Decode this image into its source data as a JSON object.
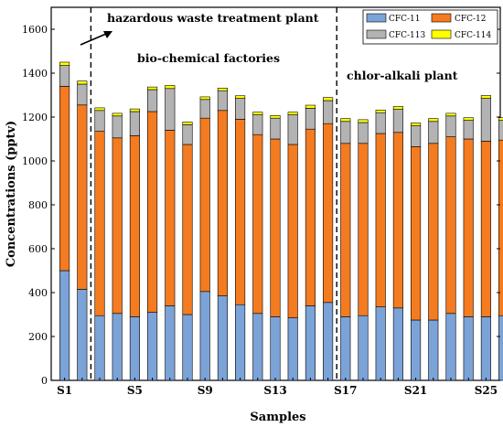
{
  "chart_data": {
    "type": "bar",
    "stacked": true,
    "xlabel": "Samples",
    "ylabel": "Concentrations  (pptv)",
    "ylim": [
      0,
      1700
    ],
    "yticks": [
      0,
      200,
      400,
      600,
      800,
      1000,
      1200,
      1400,
      1600
    ],
    "categories": [
      "S1",
      "S2",
      "S3",
      "S4",
      "S5",
      "S6",
      "S7",
      "S8",
      "S9",
      "S10",
      "S11",
      "S12",
      "S13",
      "S14",
      "S15",
      "S16",
      "S17",
      "S18",
      "S19",
      "S20",
      "S21",
      "S22",
      "S23",
      "S24",
      "S25",
      "S26"
    ],
    "xtick_labels": [
      "S1",
      "S5",
      "S9",
      "S13",
      "S17",
      "S21",
      "S25"
    ],
    "xtick_categories": [
      "S1",
      "S5",
      "S9",
      "S13",
      "S17",
      "S21",
      "S25"
    ],
    "series": [
      {
        "name": "CFC-11",
        "color": "#7ba3d8",
        "values": [
          500,
          415,
          295,
          305,
          290,
          310,
          340,
          300,
          405,
          385,
          345,
          305,
          290,
          285,
          340,
          355,
          290,
          295,
          335,
          330,
          275,
          275,
          305,
          290,
          290,
          295
        ]
      },
      {
        "name": "CFC-12",
        "color": "#f47b20",
        "values": [
          840,
          840,
          840,
          800,
          825,
          915,
          800,
          775,
          790,
          845,
          845,
          815,
          810,
          790,
          805,
          815,
          790,
          785,
          790,
          800,
          790,
          805,
          805,
          810,
          800,
          800
        ]
      },
      {
        "name": "CFC-113",
        "color": "#b3b3b3",
        "values": [
          95,
          95,
          95,
          100,
          110,
          100,
          190,
          90,
          85,
          90,
          95,
          90,
          95,
          135,
          95,
          105,
          100,
          95,
          95,
          105,
          95,
          100,
          95,
          85,
          195,
          90
        ]
      },
      {
        "name": "CFC-114",
        "color": "#ffff00",
        "values": [
          15,
          14,
          12,
          12,
          12,
          12,
          14,
          12,
          12,
          12,
          12,
          12,
          12,
          12,
          14,
          14,
          13,
          13,
          12,
          13,
          13,
          13,
          12,
          12,
          13,
          12
        ]
      }
    ],
    "legend": {
      "position": "top-right",
      "columns": 2
    },
    "annotations": [
      {
        "id": "hazardous",
        "text": "hazardous waste treatment plant"
      },
      {
        "id": "biochem",
        "text": "bio-chemical factories"
      },
      {
        "id": "chloralkali",
        "text": "chlor-alkali plant"
      }
    ],
    "dividers_after": [
      "S2",
      "S16"
    ],
    "grid": false
  }
}
